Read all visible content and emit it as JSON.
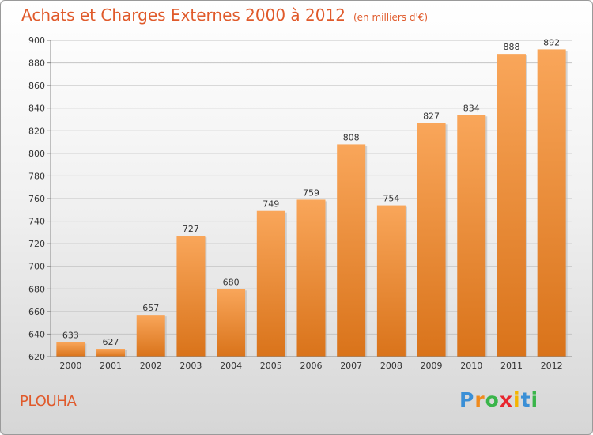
{
  "title": "Achats et Charges Externes 2000 à 2012",
  "subtitle": "(en milliers d'€)",
  "location": "PLOUHA",
  "logo": {
    "letters": [
      "P",
      "r",
      "o",
      "x",
      "i",
      "t",
      "i"
    ],
    "colors": [
      "#3a8fd6",
      "#f08a1c",
      "#3ab54a",
      "#e8262e",
      "#f5b400",
      "#3a8fd6",
      "#3ab54a"
    ]
  },
  "colors": {
    "bar_top": "#f9a65a",
    "bar_bottom": "#d9731a",
    "title": "#e05a2b"
  },
  "chart_data": {
    "type": "bar",
    "title": "Achats et Charges Externes 2000 à 2012",
    "subtitle": "(en milliers d'€)",
    "categories": [
      "2000",
      "2001",
      "2002",
      "2003",
      "2004",
      "2005",
      "2006",
      "2007",
      "2008",
      "2009",
      "2010",
      "2011",
      "2012"
    ],
    "values": [
      633,
      627,
      657,
      727,
      680,
      749,
      759,
      808,
      754,
      827,
      834,
      888,
      892
    ],
    "ylim": [
      620,
      900
    ],
    "yticks": [
      620,
      640,
      660,
      680,
      700,
      720,
      740,
      760,
      780,
      800,
      820,
      840,
      860,
      880,
      900
    ],
    "grid": true,
    "data_labels": true
  }
}
